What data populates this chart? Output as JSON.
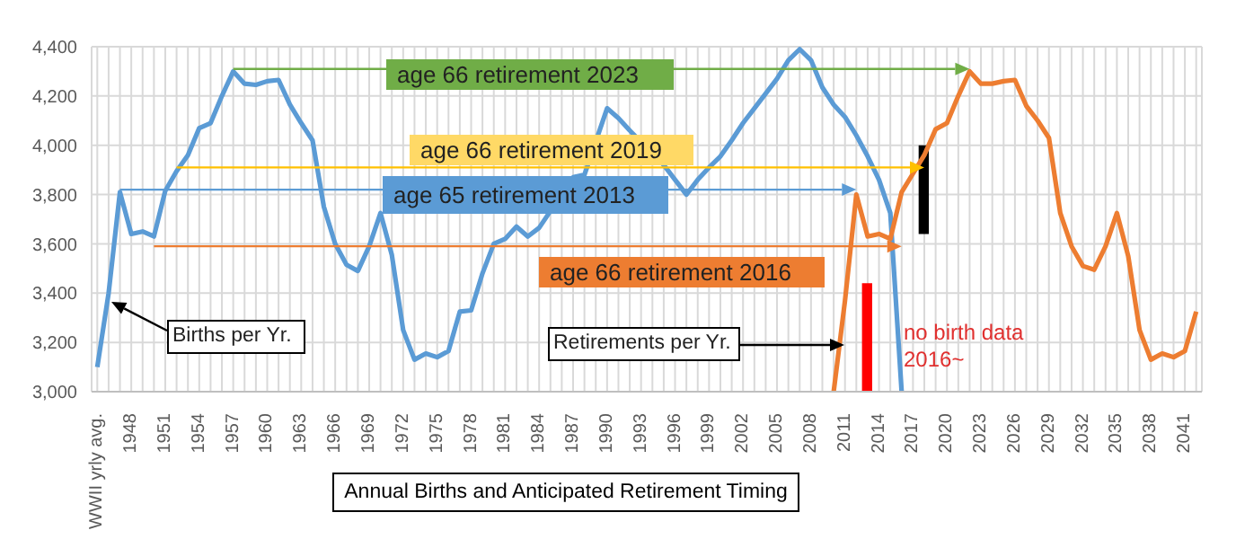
{
  "chart_data": {
    "type": "line",
    "title": "Annual Births and Anticipated Retirement Timing",
    "categories": [
      "WWII yrly avg.",
      null,
      null,
      "1948",
      null,
      null,
      "1951",
      null,
      null,
      "1954",
      null,
      null,
      "1957",
      null,
      null,
      "1960",
      null,
      null,
      "1963",
      null,
      null,
      "1966",
      null,
      null,
      "1969",
      null,
      null,
      "1972",
      null,
      null,
      "1975",
      null,
      null,
      "1978",
      null,
      null,
      "1981",
      null,
      null,
      "1984",
      null,
      null,
      "1987",
      null,
      null,
      "1990",
      null,
      null,
      "1993",
      null,
      null,
      "1996",
      null,
      null,
      "1999",
      null,
      null,
      "2002",
      null,
      null,
      "2005",
      null,
      null,
      "2008",
      null,
      null,
      "2011",
      null,
      null,
      "2014",
      null,
      null,
      "2017",
      null,
      null,
      "2020",
      null,
      null,
      "2023",
      null,
      null,
      "2026",
      null,
      null,
      "2029",
      null,
      null,
      "2032",
      null,
      null,
      "2035",
      null,
      null,
      "2038",
      null,
      null,
      "2041",
      null
    ],
    "series": [
      {
        "color": "#5b9bd5",
        "values": [
          3100,
          3400,
          3810,
          3640,
          3650,
          3630,
          3815,
          3895,
          3960,
          4070,
          4090,
          4200,
          4300,
          4250,
          4245,
          4260,
          4265,
          4165,
          4090,
          4020,
          3750,
          3600,
          3515,
          3490,
          3590,
          3725,
          3555,
          3250,
          3130,
          3155,
          3140,
          3165,
          3325,
          3330,
          3480,
          3600,
          3620,
          3670,
          3630,
          3665,
          null,
          null,
          3870,
          3880,
          null,
          4150,
          4110,
          4060,
          null,
          null,
          3920,
          3860,
          3800,
          3860,
          3910,
          3955,
          4020,
          4090,
          4150,
          4210,
          4270,
          4345,
          4390,
          4345,
          4235,
          4165,
          4115,
          4040,
          3955,
          3860,
          3725,
          3000,
          null,
          null,
          null,
          null,
          null,
          null,
          null,
          null,
          null,
          null,
          null,
          null,
          null,
          null,
          null,
          null,
          null,
          null,
          null,
          null,
          null,
          null,
          null,
          null,
          null,
          null
        ]
      },
      {
        "color": "#ed7d31",
        "values": [
          null,
          null,
          null,
          null,
          null,
          null,
          null,
          null,
          null,
          null,
          null,
          null,
          null,
          null,
          null,
          null,
          null,
          null,
          null,
          null,
          null,
          null,
          null,
          null,
          null,
          null,
          null,
          null,
          null,
          null,
          null,
          null,
          null,
          null,
          null,
          null,
          null,
          null,
          null,
          null,
          null,
          null,
          null,
          null,
          null,
          null,
          null,
          null,
          null,
          null,
          null,
          null,
          null,
          null,
          null,
          null,
          null,
          null,
          null,
          null,
          null,
          null,
          null,
          null,
          null,
          3000,
          3370,
          3800,
          3630,
          3640,
          3620,
          3810,
          3885,
          3960,
          4065,
          4090,
          4200,
          4300,
          4250,
          4250,
          4260,
          4265,
          4160,
          4100,
          4030,
          3725,
          3590,
          3510,
          3495,
          3590,
          3725,
          3550,
          3250,
          3130,
          3155,
          3140,
          3165,
          3325
        ]
      },
      {
        "type": "bar",
        "colors": [
          null,
          null,
          null,
          null,
          null,
          null,
          null,
          null,
          null,
          null,
          null,
          null,
          null,
          null,
          null,
          null,
          null,
          null,
          null,
          null,
          null,
          null,
          null,
          null,
          null,
          null,
          null,
          null,
          null,
          null,
          null,
          null,
          null,
          null,
          null,
          null,
          null,
          null,
          null,
          null,
          null,
          null,
          null,
          null,
          null,
          null,
          null,
          null,
          null,
          null,
          null,
          null,
          null,
          null,
          null,
          null,
          null,
          null,
          null,
          null,
          null,
          null,
          null,
          null,
          null,
          null,
          null,
          null,
          "#ff0000",
          null,
          null,
          null,
          null,
          "#000000",
          null,
          null,
          null,
          null,
          null,
          null,
          null,
          null,
          null,
          null,
          null,
          null,
          null,
          null,
          null,
          null,
          null,
          null,
          null,
          null,
          null,
          null,
          null,
          null
        ],
        "values": [
          null,
          null,
          null,
          null,
          null,
          null,
          null,
          null,
          null,
          null,
          null,
          null,
          null,
          null,
          null,
          null,
          null,
          null,
          null,
          null,
          null,
          null,
          null,
          null,
          null,
          null,
          null,
          null,
          null,
          null,
          null,
          null,
          null,
          null,
          null,
          null,
          null,
          null,
          null,
          null,
          null,
          null,
          null,
          null,
          null,
          null,
          null,
          null,
          null,
          null,
          null,
          null,
          null,
          null,
          null,
          null,
          null,
          null,
          null,
          null,
          null,
          null,
          null,
          null,
          null,
          null,
          null,
          null,
          440,
          null,
          null,
          null,
          null,
          360,
          null,
          null,
          null,
          null,
          null,
          null,
          null,
          null,
          null,
          null,
          null,
          null,
          null,
          null,
          null,
          null,
          null,
          null,
          null,
          null,
          null,
          null,
          null,
          null
        ],
        "base": [
          null,
          null,
          null,
          null,
          null,
          null,
          null,
          null,
          null,
          null,
          null,
          null,
          null,
          null,
          null,
          null,
          null,
          null,
          null,
          null,
          null,
          null,
          null,
          null,
          null,
          null,
          null,
          null,
          null,
          null,
          null,
          null,
          null,
          null,
          null,
          null,
          null,
          null,
          null,
          null,
          null,
          null,
          null,
          null,
          null,
          null,
          null,
          null,
          null,
          null,
          null,
          null,
          null,
          null,
          null,
          null,
          null,
          null,
          null,
          null,
          null,
          null,
          null,
          null,
          null,
          null,
          null,
          null,
          3000,
          null,
          null,
          null,
          null,
          3640,
          null,
          null,
          null,
          null,
          null,
          null,
          null,
          null,
          null,
          null,
          null,
          null,
          null,
          null,
          null,
          null,
          null,
          null,
          null,
          null,
          null,
          null,
          null,
          null
        ]
      }
    ],
    "annotations": [
      "Births per Yr.",
      "Retirements per Yr.",
      "no birth data 2016~",
      "age 66 retirement 2023",
      "age 66 retirement 2019",
      "age 65 retirement 2013",
      "age 66 retirement 2016"
    ],
    "ylim": [
      3000,
      4400
    ],
    "yticks": [
      {
        "value": 3000,
        "label": "3,000"
      },
      {
        "value": 3200,
        "label": "3,200"
      },
      {
        "value": 3400,
        "label": "3,400"
      },
      {
        "value": 3600,
        "label": "3,600"
      },
      {
        "value": 3800,
        "label": "3,800"
      },
      {
        "value": 4000,
        "label": "4,000"
      },
      {
        "value": 4200,
        "label": "4,200"
      },
      {
        "value": 4400,
        "label": "4,400"
      }
    ],
    "grid": true,
    "marker": "none"
  }
}
